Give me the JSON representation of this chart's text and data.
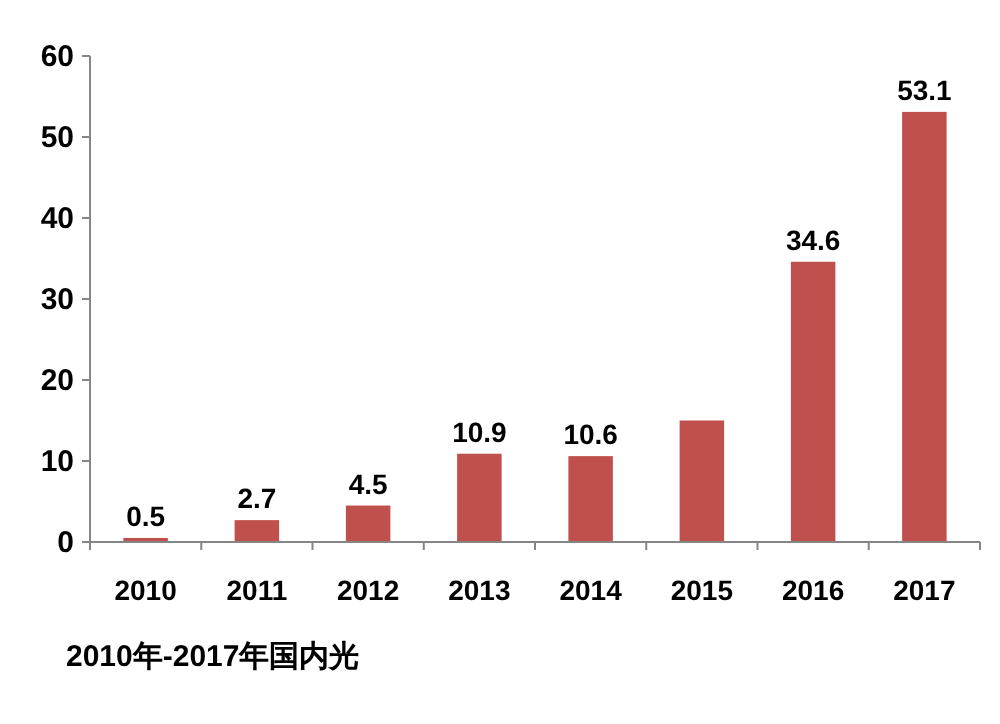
{
  "chart_data": {
    "type": "bar",
    "title": "2010年-2017年国内光",
    "categories": [
      "2010",
      "2011",
      "2012",
      "2013",
      "2014",
      "2015",
      "2016",
      "2017"
    ],
    "values": [
      0.5,
      2.7,
      4.5,
      10.9,
      10.6,
      15,
      34.6,
      53.1
    ],
    "value_labels": [
      "0.5",
      "2.7",
      "4.5",
      "10.9",
      "10.6",
      null,
      "34.6",
      "53.1"
    ],
    "color": "#c0504d",
    "ylim": [
      0,
      60
    ],
    "yticks": [
      0,
      10,
      20,
      30,
      40,
      50,
      60
    ]
  }
}
